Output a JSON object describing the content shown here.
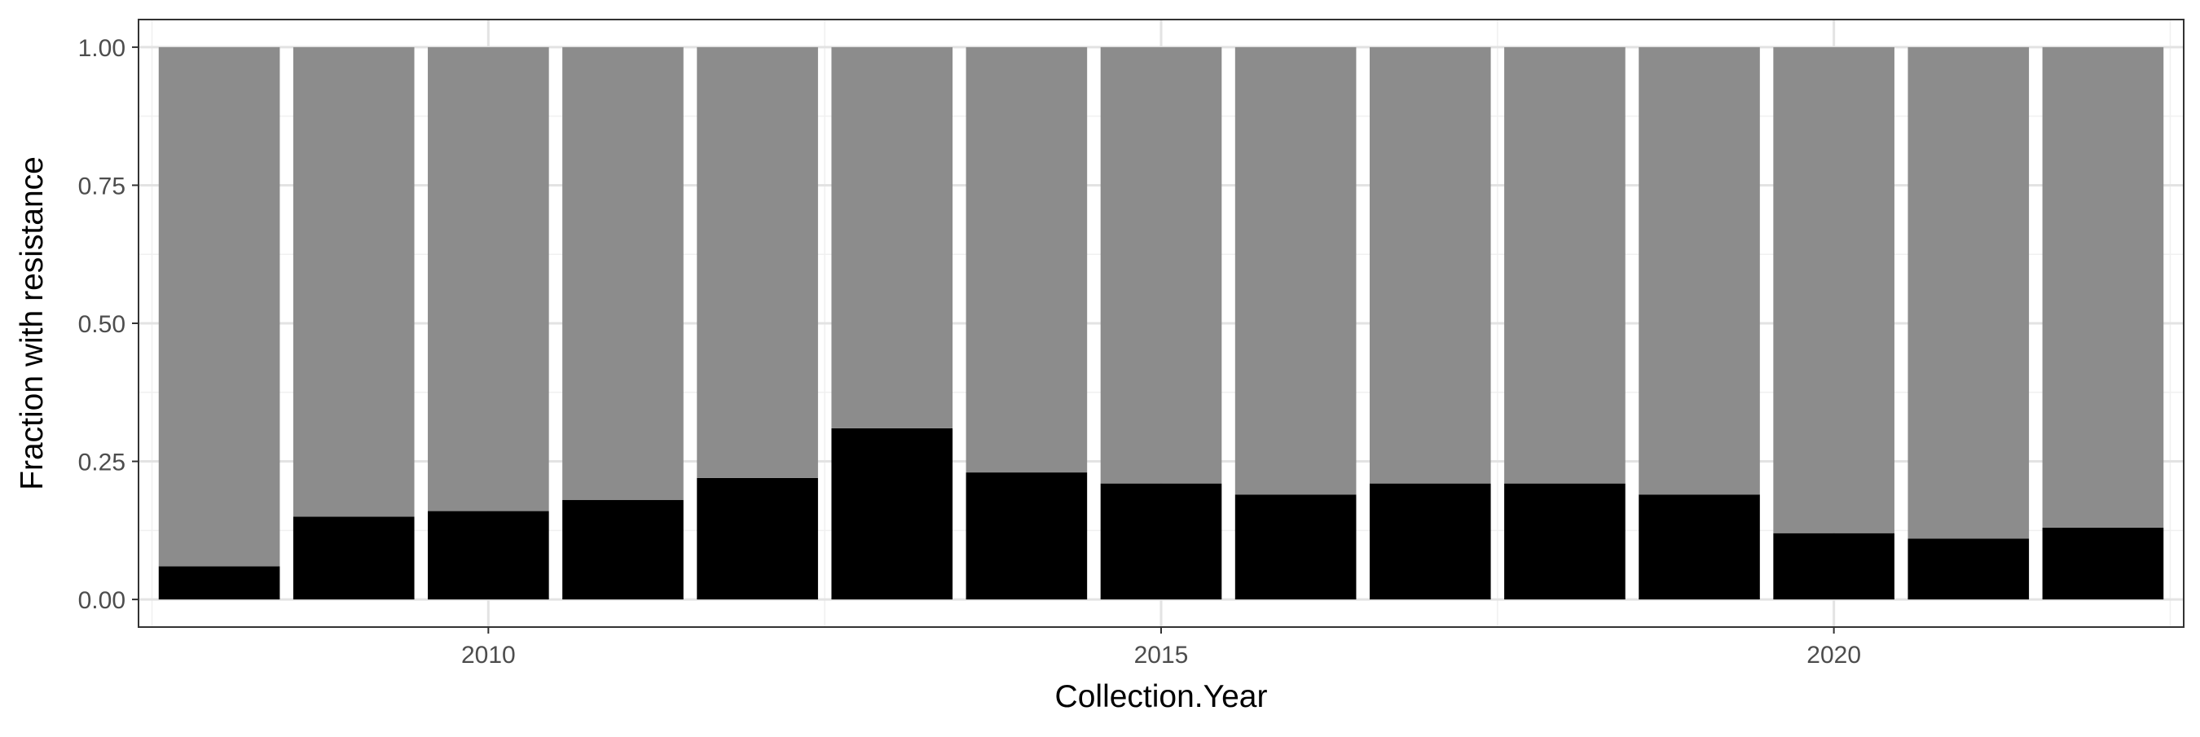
{
  "chart_data": {
    "type": "bar",
    "stacked": true,
    "title": "",
    "xlabel": "Collection.Year",
    "ylabel": "Fraction with resistance",
    "x": [
      2008,
      2009,
      2010,
      2011,
      2012,
      2013,
      2014,
      2015,
      2016,
      2017,
      2018,
      2019,
      2020,
      2021,
      2022
    ],
    "xlim": [
      2007.4,
      2022.6
    ],
    "ylim": [
      -0.05,
      1.05
    ],
    "x_ticks": [
      2010,
      2015,
      2020
    ],
    "x_tick_labels": [
      "2010",
      "2015",
      "2020"
    ],
    "y_ticks": [
      0,
      0.25,
      0.5,
      0.75,
      1.0
    ],
    "y_tick_labels": [
      "0.00",
      "0.25",
      "0.50",
      "0.75",
      "1.00"
    ],
    "series": [
      {
        "values": [
          0.06,
          0.15,
          0.16,
          0.18,
          0.22,
          0.31,
          0.23,
          0.21,
          0.19,
          0.21,
          0.21,
          0.19,
          0.12,
          0.11,
          0.13
        ],
        "color": "#000000"
      },
      {
        "values": [
          0.94,
          0.85,
          0.84,
          0.82,
          0.78,
          0.69,
          0.77,
          0.79,
          0.81,
          0.79,
          0.79,
          0.81,
          0.88,
          0.89,
          0.87
        ],
        "color": "#8c8c8c"
      }
    ],
    "grid": true,
    "theme": "bw",
    "legend": "none"
  }
}
